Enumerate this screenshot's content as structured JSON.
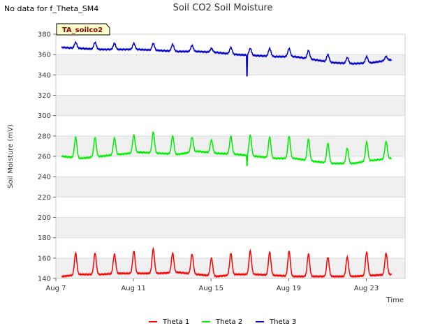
{
  "note": "No data for f_Theta_SM4",
  "chart_data": {
    "type": "line",
    "title": "Soil CO2 Soil Moisture",
    "xlabel": "Time",
    "ylabel": "Soil Moisture (mV)",
    "ylim": [
      140,
      380
    ],
    "yticks": [
      140,
      160,
      180,
      200,
      220,
      240,
      260,
      280,
      300,
      320,
      340,
      360,
      380
    ],
    "xlim": [
      7,
      25
    ],
    "xticks": [
      {
        "value": 7,
        "label": "Aug 7"
      },
      {
        "value": 11,
        "label": "Aug 11"
      },
      {
        "value": 15,
        "label": "Aug 15"
      },
      {
        "value": 19,
        "label": "Aug 19"
      },
      {
        "value": 23,
        "label": "Aug 23"
      }
    ],
    "grid": "horizontal alternating bands",
    "legend_position": "bottom-center",
    "site_badge": "TA_soilco2",
    "series": [
      {
        "name": "Theta 1",
        "color": "#ff0000",
        "day_start": 7.3,
        "baseline": [
          142,
          144,
          144,
          145,
          145,
          145,
          146,
          144,
          142,
          144,
          144,
          143,
          142,
          142,
          142,
          142,
          143,
          144
        ],
        "peaks": [
          165,
          165,
          164,
          167,
          169,
          165,
          164,
          160,
          165,
          167,
          166,
          167,
          164,
          161,
          161,
          166,
          165
        ],
        "dips": []
      },
      {
        "name": "Theta 2",
        "color": "#00ee00",
        "day_start": 7.3,
        "baseline": [
          260,
          258,
          260,
          262,
          264,
          263,
          262,
          265,
          263,
          262,
          260,
          258,
          258,
          255,
          253,
          253,
          256,
          258
        ],
        "peaks": [
          279,
          279,
          278,
          281,
          284,
          280,
          279,
          276,
          280,
          281,
          279,
          280,
          277,
          273,
          268,
          274,
          275
        ],
        "dips": [
          {
            "day": 16.85,
            "value": 251
          }
        ]
      },
      {
        "name": "Theta 3",
        "color": "#0000cc",
        "day_start": 7.3,
        "baseline": [
          367,
          366,
          365,
          365,
          365,
          364,
          363,
          363,
          362,
          360,
          359,
          358,
          358,
          355,
          352,
          351,
          352,
          355
        ],
        "peaks": [
          372,
          372,
          371,
          371,
          371,
          370,
          369,
          366,
          367,
          366,
          366,
          366,
          364,
          360,
          357,
          358,
          358
        ],
        "dips": [
          {
            "day": 16.85,
            "value": 339
          }
        ]
      }
    ]
  }
}
